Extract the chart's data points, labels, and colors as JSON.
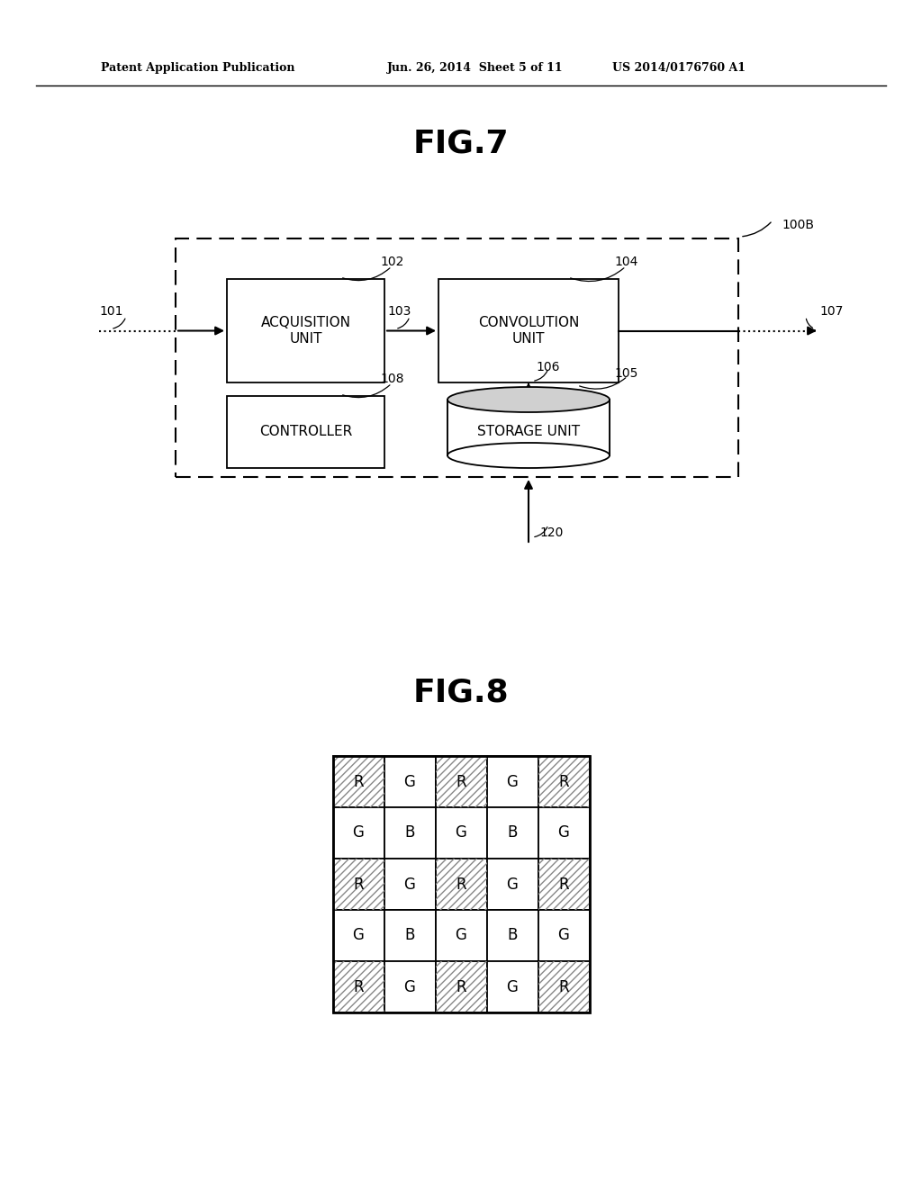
{
  "bg_color": "#ffffff",
  "header_left": "Patent Application Publication",
  "header_mid": "Jun. 26, 2014  Sheet 5 of 11",
  "header_right": "US 2014/0176760 A1",
  "fig7_title": "FIG.7",
  "fig8_title": "FIG.8",
  "grid_pattern": [
    [
      "R",
      "G",
      "R",
      "G",
      "R"
    ],
    [
      "G",
      "B",
      "G",
      "B",
      "G"
    ],
    [
      "R",
      "G",
      "R",
      "G",
      "R"
    ],
    [
      "G",
      "B",
      "G",
      "B",
      "G"
    ],
    [
      "R",
      "G",
      "R",
      "G",
      "R"
    ]
  ]
}
